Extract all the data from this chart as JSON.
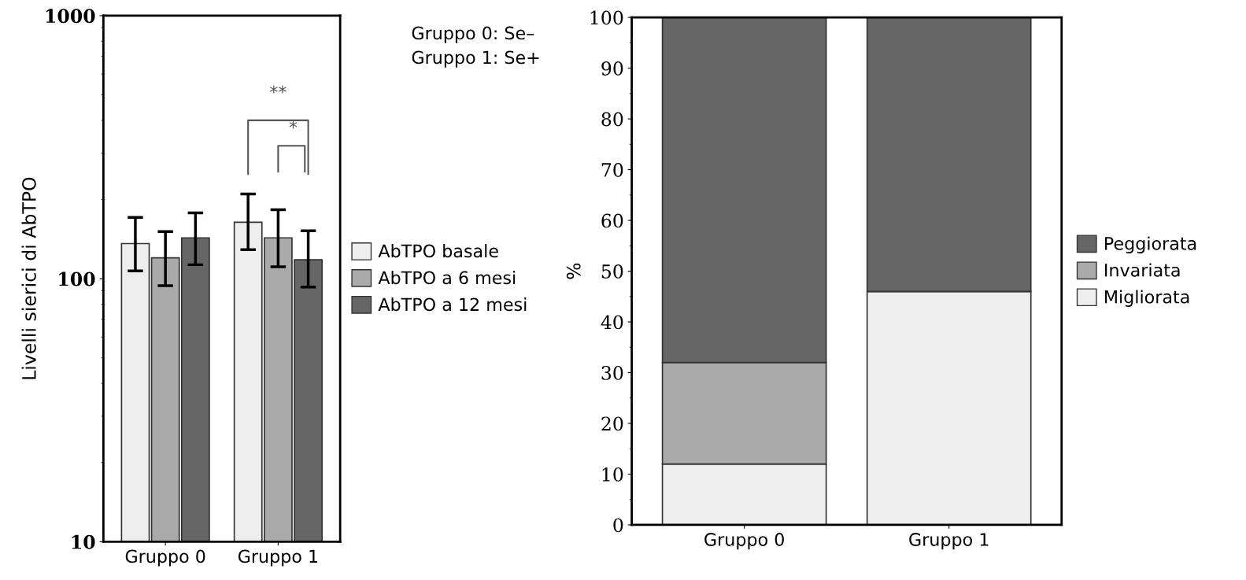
{
  "chart_data": [
    {
      "type": "bar",
      "ylabel": "Livelli sierici di AbTPO",
      "categories": [
        "Gruppo 0",
        "Gruppo 1"
      ],
      "log": true,
      "ylim": [
        10,
        1000
      ],
      "yticks": [
        10,
        100,
        1000
      ],
      "legend": "right",
      "grid": false,
      "series": [
        {
          "name": "AbTPO basale",
          "color": "#eeeeee",
          "values": [
            136,
            164
          ],
          "errors": [
            [
              107,
              171
            ],
            [
              129,
              210
            ]
          ]
        },
        {
          "name": "AbTPO a 6 mesi",
          "color": "#aaaaaa",
          "values": [
            120,
            143
          ],
          "errors": [
            [
              94,
              151
            ],
            [
              111,
              183
            ]
          ]
        },
        {
          "name": "AbTPO a 12 mesi",
          "color": "#666666",
          "values": [
            143,
            118
          ],
          "errors": [
            [
              113,
              178
            ],
            [
              93,
              152
            ]
          ]
        }
      ],
      "annotations": [
        "**",
        "*",
        "Gruppo 0: Se–",
        "Gruppo 1: Se+"
      ]
    },
    {
      "type": "bar",
      "stacked": true,
      "ylabel": "%",
      "categories": [
        "Gruppo 0",
        "Gruppo 1"
      ],
      "ylim": [
        0,
        100
      ],
      "yticks": [
        0,
        10,
        20,
        30,
        40,
        50,
        60,
        70,
        80,
        90,
        100
      ],
      "legend": "right",
      "grid": false,
      "series": [
        {
          "name": "Migliorata",
          "color": "#eeeeee",
          "values": [
            12,
            46
          ]
        },
        {
          "name": "Invariata",
          "color": "#aaaaaa",
          "values": [
            20,
            0
          ]
        },
        {
          "name": "Peggiorata",
          "color": "#666666",
          "values": [
            68,
            54
          ]
        }
      ]
    }
  ]
}
